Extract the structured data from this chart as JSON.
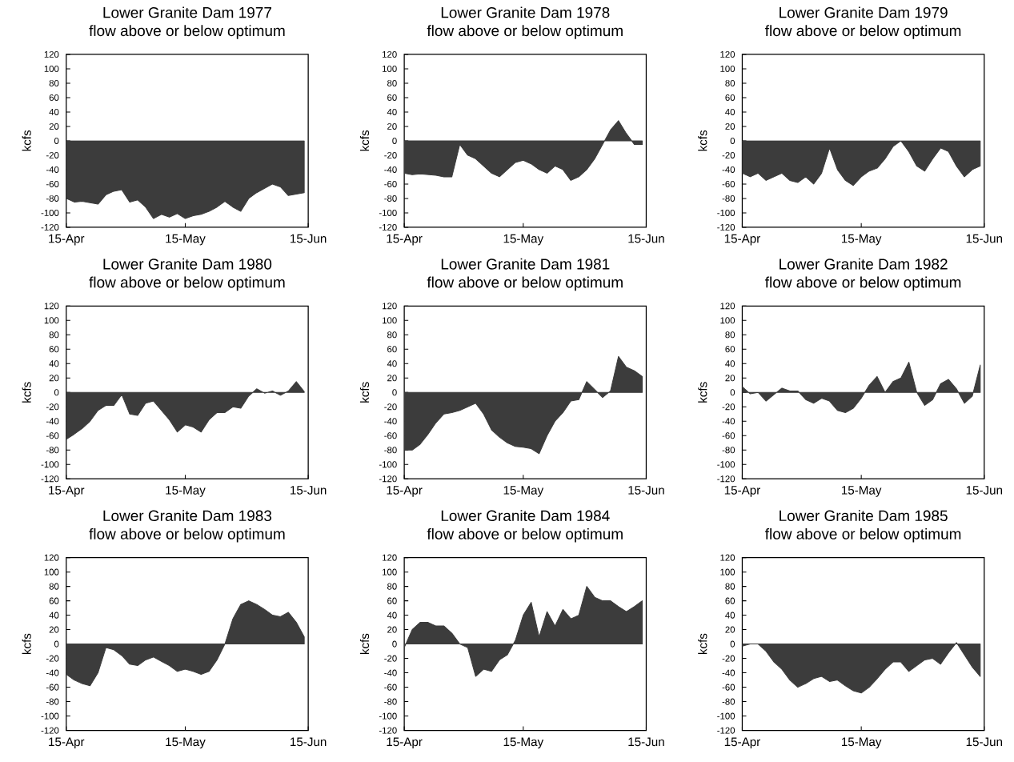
{
  "chart_data": [
    {
      "type": "area",
      "title": "Lower Granite Dam 1977",
      "subtitle": "flow above or below optimum",
      "ylabel": "kcfs",
      "color": "#3c3c3c",
      "xlim": [
        "1977-04-15",
        "1977-06-15"
      ],
      "xticks": [
        {
          "value": "1977-04-15",
          "label": "15-Apr"
        },
        {
          "value": "1977-05-15",
          "label": "15-May"
        },
        {
          "value": "1977-06-15",
          "label": "15-Jun"
        }
      ],
      "ylim": [
        -120,
        120
      ],
      "yticks": [
        -120,
        -100,
        -80,
        -60,
        -40,
        -20,
        0,
        20,
        40,
        60,
        80,
        100,
        120
      ],
      "x": [
        "1977-04-15",
        "1977-04-17",
        "1977-04-19",
        "1977-04-21",
        "1977-04-23",
        "1977-04-25",
        "1977-04-27",
        "1977-04-29",
        "1977-05-01",
        "1977-05-03",
        "1977-05-05",
        "1977-05-07",
        "1977-05-09",
        "1977-05-11",
        "1977-05-13",
        "1977-05-15",
        "1977-05-17",
        "1977-05-19",
        "1977-05-21",
        "1977-05-23",
        "1977-05-25",
        "1977-05-27",
        "1977-05-29",
        "1977-05-31",
        "1977-06-02",
        "1977-06-04",
        "1977-06-06",
        "1977-06-08",
        "1977-06-10",
        "1977-06-12",
        "1977-06-14"
      ],
      "values": [
        -80,
        -85,
        -84,
        -86,
        -88,
        -75,
        -70,
        -68,
        -85,
        -82,
        -92,
        -108,
        -102,
        -106,
        -101,
        -108,
        -104,
        -102,
        -98,
        -92,
        -84,
        -92,
        -98,
        -80,
        -72,
        -66,
        -60,
        -64,
        -76,
        -74,
        -72
      ]
    },
    {
      "type": "area",
      "title": "Lower Granite Dam 1978",
      "subtitle": "flow above or below optimum",
      "ylabel": "kcfs",
      "color": "#3c3c3c",
      "xlim": [
        "1978-04-15",
        "1978-06-15"
      ],
      "xticks": [
        {
          "value": "1978-04-15",
          "label": "15-Apr"
        },
        {
          "value": "1978-05-15",
          "label": "15-May"
        },
        {
          "value": "1978-06-15",
          "label": "15-Jun"
        }
      ],
      "ylim": [
        -120,
        120
      ],
      "yticks": [
        -120,
        -100,
        -80,
        -60,
        -40,
        -20,
        0,
        20,
        40,
        60,
        80,
        100,
        120
      ],
      "x": [
        "1978-04-15",
        "1978-04-17",
        "1978-04-19",
        "1978-04-21",
        "1978-04-23",
        "1978-04-25",
        "1978-04-27",
        "1978-04-29",
        "1978-05-01",
        "1978-05-03",
        "1978-05-05",
        "1978-05-07",
        "1978-05-09",
        "1978-05-11",
        "1978-05-13",
        "1978-05-15",
        "1978-05-17",
        "1978-05-19",
        "1978-05-21",
        "1978-05-23",
        "1978-05-25",
        "1978-05-27",
        "1978-05-29",
        "1978-05-31",
        "1978-06-02",
        "1978-06-04",
        "1978-06-06",
        "1978-06-08",
        "1978-06-10",
        "1978-06-12",
        "1978-06-14"
      ],
      "values": [
        -45,
        -47,
        -46,
        -47,
        -48,
        -50,
        -50,
        -5,
        -20,
        -25,
        -35,
        -45,
        -50,
        -40,
        -30,
        -27,
        -32,
        -40,
        -45,
        -35,
        -40,
        -55,
        -50,
        -40,
        -25,
        -5,
        15,
        28,
        10,
        -5,
        -5
      ]
    },
    {
      "type": "area",
      "title": "Lower Granite Dam 1979",
      "subtitle": "flow above or below optimum",
      "ylabel": "kcfs",
      "color": "#3c3c3c",
      "xlim": [
        "1979-04-15",
        "1979-06-15"
      ],
      "xticks": [
        {
          "value": "1979-04-15",
          "label": "15-Apr"
        },
        {
          "value": "1979-05-15",
          "label": "15-May"
        },
        {
          "value": "1979-06-15",
          "label": "15-Jun"
        }
      ],
      "ylim": [
        -120,
        120
      ],
      "yticks": [
        -120,
        -100,
        -80,
        -60,
        -40,
        -20,
        0,
        20,
        40,
        60,
        80,
        100,
        120
      ],
      "x": [
        "1979-04-15",
        "1979-04-17",
        "1979-04-19",
        "1979-04-21",
        "1979-04-23",
        "1979-04-25",
        "1979-04-27",
        "1979-04-29",
        "1979-05-01",
        "1979-05-03",
        "1979-05-05",
        "1979-05-07",
        "1979-05-09",
        "1979-05-11",
        "1979-05-13",
        "1979-05-15",
        "1979-05-17",
        "1979-05-19",
        "1979-05-21",
        "1979-05-23",
        "1979-05-25",
        "1979-05-27",
        "1979-05-29",
        "1979-05-31",
        "1979-06-02",
        "1979-06-04",
        "1979-06-06",
        "1979-06-08",
        "1979-06-10",
        "1979-06-12",
        "1979-06-14"
      ],
      "values": [
        -45,
        -50,
        -45,
        -55,
        -50,
        -45,
        -55,
        -58,
        -50,
        -60,
        -45,
        -10,
        -40,
        -55,
        -62,
        -50,
        -42,
        -38,
        -25,
        -8,
        0,
        -15,
        -35,
        -42,
        -25,
        -10,
        -15,
        -35,
        -50,
        -40,
        -35
      ]
    },
    {
      "type": "area",
      "title": "Lower Granite Dam 1980",
      "subtitle": "flow above or below optimum",
      "ylabel": "kcfs",
      "color": "#3c3c3c",
      "xlim": [
        "1980-04-15",
        "1980-06-15"
      ],
      "xticks": [
        {
          "value": "1980-04-15",
          "label": "15-Apr"
        },
        {
          "value": "1980-05-15",
          "label": "15-May"
        },
        {
          "value": "1980-06-15",
          "label": "15-Jun"
        }
      ],
      "ylim": [
        -120,
        120
      ],
      "yticks": [
        -120,
        -100,
        -80,
        -60,
        -40,
        -20,
        0,
        20,
        40,
        60,
        80,
        100,
        120
      ],
      "x": [
        "1980-04-15",
        "1980-04-17",
        "1980-04-19",
        "1980-04-21",
        "1980-04-23",
        "1980-04-25",
        "1980-04-27",
        "1980-04-29",
        "1980-05-01",
        "1980-05-03",
        "1980-05-05",
        "1980-05-07",
        "1980-05-09",
        "1980-05-11",
        "1980-05-13",
        "1980-05-15",
        "1980-05-17",
        "1980-05-19",
        "1980-05-21",
        "1980-05-23",
        "1980-05-25",
        "1980-05-27",
        "1980-05-29",
        "1980-05-31",
        "1980-06-02",
        "1980-06-04",
        "1980-06-06",
        "1980-06-08",
        "1980-06-10",
        "1980-06-12",
        "1980-06-14"
      ],
      "values": [
        -65,
        -58,
        -50,
        -40,
        -25,
        -18,
        -18,
        -3,
        -30,
        -32,
        -15,
        -12,
        -25,
        -38,
        -55,
        -45,
        -48,
        -55,
        -38,
        -28,
        -28,
        -20,
        -22,
        -5,
        5,
        -1,
        2,
        -4,
        2,
        15,
        1
      ]
    },
    {
      "type": "area",
      "title": "Lower Granite Dam 1981",
      "subtitle": "flow above or below optimum",
      "ylabel": "kcfs",
      "color": "#3c3c3c",
      "xlim": [
        "1981-04-15",
        "1981-06-15"
      ],
      "xticks": [
        {
          "value": "1981-04-15",
          "label": "15-Apr"
        },
        {
          "value": "1981-05-15",
          "label": "15-May"
        },
        {
          "value": "1981-06-15",
          "label": "15-Jun"
        }
      ],
      "ylim": [
        -120,
        120
      ],
      "yticks": [
        -120,
        -100,
        -80,
        -60,
        -40,
        -20,
        0,
        20,
        40,
        60,
        80,
        100,
        120
      ],
      "x": [
        "1981-04-15",
        "1981-04-17",
        "1981-04-19",
        "1981-04-21",
        "1981-04-23",
        "1981-04-25",
        "1981-04-27",
        "1981-04-29",
        "1981-05-01",
        "1981-05-03",
        "1981-05-05",
        "1981-05-07",
        "1981-05-09",
        "1981-05-11",
        "1981-05-13",
        "1981-05-15",
        "1981-05-17",
        "1981-05-19",
        "1981-05-21",
        "1981-05-23",
        "1981-05-25",
        "1981-05-27",
        "1981-05-29",
        "1981-05-31",
        "1981-06-02",
        "1981-06-04",
        "1981-06-06",
        "1981-06-08",
        "1981-06-10",
        "1981-06-12",
        "1981-06-14"
      ],
      "values": [
        -80,
        -80,
        -72,
        -58,
        -42,
        -30,
        -28,
        -25,
        -20,
        -15,
        -30,
        -52,
        -62,
        -70,
        -75,
        -76,
        -78,
        -85,
        -60,
        -40,
        -28,
        -12,
        -10,
        15,
        4,
        -7,
        2,
        50,
        35,
        30,
        22
      ]
    },
    {
      "type": "area",
      "title": "Lower Granite Dam 1982",
      "subtitle": "flow above or below optimum",
      "ylabel": "kcfs",
      "color": "#3c3c3c",
      "xlim": [
        "1982-04-15",
        "1982-06-15"
      ],
      "xticks": [
        {
          "value": "1982-04-15",
          "label": "15-Apr"
        },
        {
          "value": "1982-05-15",
          "label": "15-May"
        },
        {
          "value": "1982-06-15",
          "label": "15-Jun"
        }
      ],
      "ylim": [
        -120,
        120
      ],
      "yticks": [
        -120,
        -100,
        -80,
        -60,
        -40,
        -20,
        0,
        20,
        40,
        60,
        80,
        100,
        120
      ],
      "x": [
        "1982-04-15",
        "1982-04-17",
        "1982-04-19",
        "1982-04-21",
        "1982-04-23",
        "1982-04-25",
        "1982-04-27",
        "1982-04-29",
        "1982-05-01",
        "1982-05-03",
        "1982-05-05",
        "1982-05-07",
        "1982-05-09",
        "1982-05-11",
        "1982-05-13",
        "1982-05-15",
        "1982-05-17",
        "1982-05-19",
        "1982-05-21",
        "1982-05-23",
        "1982-05-25",
        "1982-05-27",
        "1982-05-29",
        "1982-05-31",
        "1982-06-02",
        "1982-06-04",
        "1982-06-06",
        "1982-06-08",
        "1982-06-10",
        "1982-06-12",
        "1982-06-14"
      ],
      "values": [
        8,
        -2,
        0,
        -12,
        -3,
        6,
        2,
        2,
        -10,
        -15,
        -8,
        -12,
        -25,
        -28,
        -22,
        -8,
        10,
        22,
        0,
        15,
        20,
        42,
        0,
        -18,
        -10,
        12,
        18,
        5,
        -15,
        -5,
        38
      ]
    },
    {
      "type": "area",
      "title": "Lower Granite Dam 1983",
      "subtitle": "flow above or below optimum",
      "ylabel": "kcfs",
      "color": "#3c3c3c",
      "xlim": [
        "1983-04-15",
        "1983-06-15"
      ],
      "xticks": [
        {
          "value": "1983-04-15",
          "label": "15-Apr"
        },
        {
          "value": "1983-05-15",
          "label": "15-May"
        },
        {
          "value": "1983-06-15",
          "label": "15-Jun"
        }
      ],
      "ylim": [
        -120,
        120
      ],
      "yticks": [
        -120,
        -100,
        -80,
        -60,
        -40,
        -20,
        0,
        20,
        40,
        60,
        80,
        100,
        120
      ],
      "x": [
        "1983-04-15",
        "1983-04-17",
        "1983-04-19",
        "1983-04-21",
        "1983-04-23",
        "1983-04-25",
        "1983-04-27",
        "1983-04-29",
        "1983-05-01",
        "1983-05-03",
        "1983-05-05",
        "1983-05-07",
        "1983-05-09",
        "1983-05-11",
        "1983-05-13",
        "1983-05-15",
        "1983-05-17",
        "1983-05-19",
        "1983-05-21",
        "1983-05-23",
        "1983-05-25",
        "1983-05-27",
        "1983-05-29",
        "1983-05-31",
        "1983-06-02",
        "1983-06-04",
        "1983-06-06",
        "1983-06-08",
        "1983-06-10",
        "1983-06-12",
        "1983-06-14"
      ],
      "values": [
        -42,
        -50,
        -55,
        -58,
        -40,
        -5,
        -8,
        -16,
        -28,
        -30,
        -22,
        -18,
        -24,
        -30,
        -38,
        -35,
        -38,
        -42,
        -38,
        -22,
        0,
        35,
        55,
        60,
        55,
        48,
        40,
        38,
        44,
        30,
        10
      ]
    },
    {
      "type": "area",
      "title": "Lower Granite Dam 1984",
      "subtitle": "flow above or below optimum",
      "ylabel": "kcfs",
      "color": "#3c3c3c",
      "xlim": [
        "1984-04-15",
        "1984-06-15"
      ],
      "xticks": [
        {
          "value": "1984-04-15",
          "label": "15-Apr"
        },
        {
          "value": "1984-05-15",
          "label": "15-May"
        },
        {
          "value": "1984-06-15",
          "label": "15-Jun"
        }
      ],
      "ylim": [
        -120,
        120
      ],
      "yticks": [
        -120,
        -100,
        -80,
        -60,
        -40,
        -20,
        0,
        20,
        40,
        60,
        80,
        100,
        120
      ],
      "x": [
        "1984-04-15",
        "1984-04-17",
        "1984-04-19",
        "1984-04-21",
        "1984-04-23",
        "1984-04-25",
        "1984-04-27",
        "1984-04-29",
        "1984-05-01",
        "1984-05-03",
        "1984-05-05",
        "1984-05-07",
        "1984-05-09",
        "1984-05-11",
        "1984-05-13",
        "1984-05-15",
        "1984-05-17",
        "1984-05-19",
        "1984-05-21",
        "1984-05-23",
        "1984-05-25",
        "1984-05-27",
        "1984-05-29",
        "1984-05-31",
        "1984-06-02",
        "1984-06-04",
        "1984-06-06",
        "1984-06-08",
        "1984-06-10",
        "1984-06-12",
        "1984-06-14"
      ],
      "values": [
        -5,
        20,
        30,
        30,
        25,
        25,
        15,
        0,
        -5,
        -45,
        -35,
        -38,
        -22,
        -15,
        5,
        40,
        58,
        10,
        45,
        25,
        48,
        35,
        40,
        80,
        65,
        60,
        60,
        52,
        45,
        52,
        60
      ]
    },
    {
      "type": "area",
      "title": "Lower Granite Dam 1985",
      "subtitle": "flow above or below optimum",
      "ylabel": "kcfs",
      "color": "#3c3c3c",
      "xlim": [
        "1985-04-15",
        "1985-06-15"
      ],
      "xticks": [
        {
          "value": "1985-04-15",
          "label": "15-Apr"
        },
        {
          "value": "1985-05-15",
          "label": "15-May"
        },
        {
          "value": "1985-06-15",
          "label": "15-Jun"
        }
      ],
      "ylim": [
        -120,
        120
      ],
      "yticks": [
        -120,
        -100,
        -80,
        -60,
        -40,
        -20,
        0,
        20,
        40,
        60,
        80,
        100,
        120
      ],
      "x": [
        "1985-04-15",
        "1985-04-17",
        "1985-04-19",
        "1985-04-21",
        "1985-04-23",
        "1985-04-25",
        "1985-04-27",
        "1985-04-29",
        "1985-05-01",
        "1985-05-03",
        "1985-05-05",
        "1985-05-07",
        "1985-05-09",
        "1985-05-11",
        "1985-05-13",
        "1985-05-15",
        "1985-05-17",
        "1985-05-19",
        "1985-05-21",
        "1985-05-23",
        "1985-05-25",
        "1985-05-27",
        "1985-05-29",
        "1985-05-31",
        "1985-06-02",
        "1985-06-04",
        "1985-06-06",
        "1985-06-08",
        "1985-06-10",
        "1985-06-12",
        "1985-06-14"
      ],
      "values": [
        -3,
        0,
        0,
        -10,
        -25,
        -35,
        -50,
        -60,
        -55,
        -48,
        -45,
        -52,
        -50,
        -58,
        -65,
        -68,
        -60,
        -48,
        -35,
        -25,
        -25,
        -38,
        -30,
        -22,
        -20,
        -28,
        -12,
        2,
        -15,
        -32,
        -45
      ]
    }
  ]
}
